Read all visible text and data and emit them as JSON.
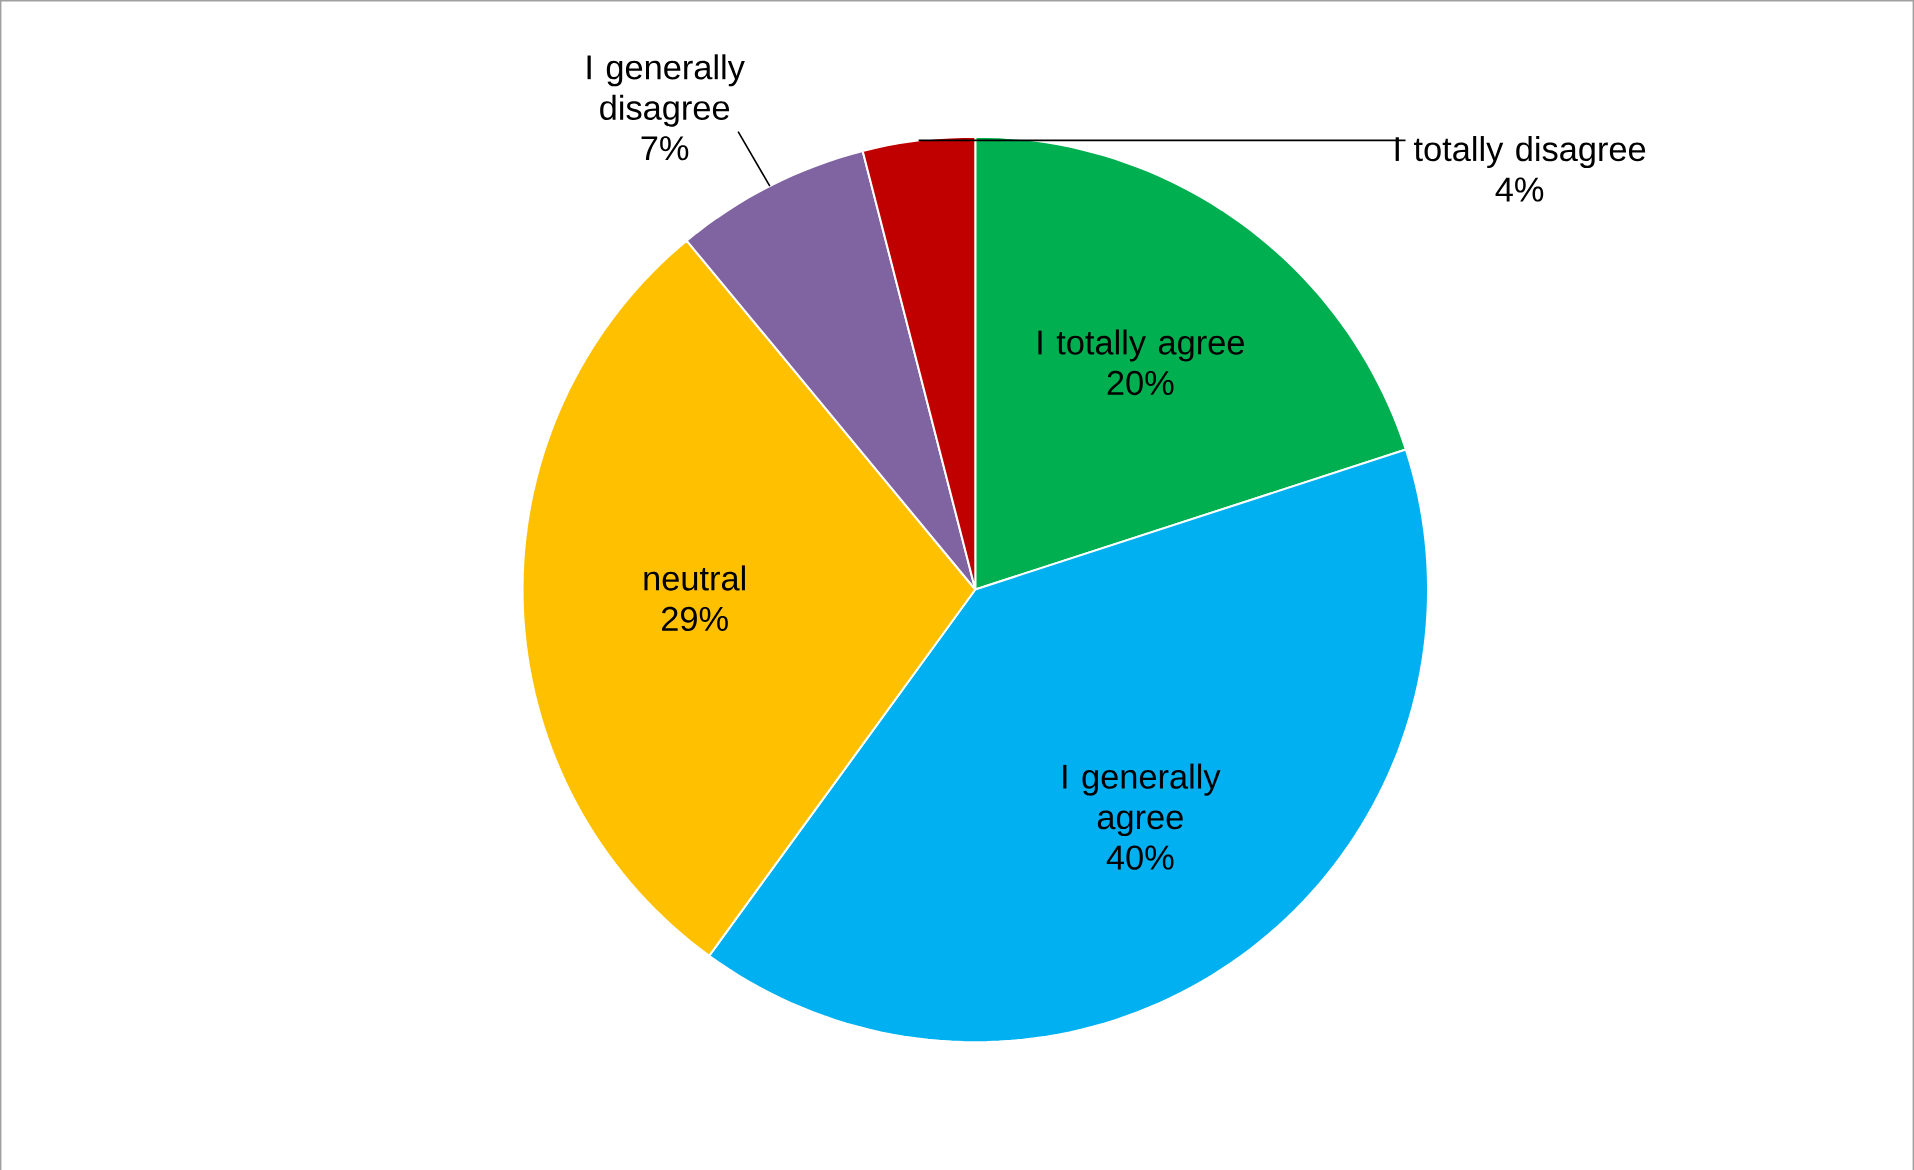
{
  "chart_data": {
    "type": "pie",
    "categories": [
      "I totally agree",
      "I generally agree",
      "neutral",
      "I generally disagree",
      "I totally disagree"
    ],
    "values": [
      20,
      40,
      29,
      7,
      4
    ],
    "value_labels": [
      "20%",
      "40%",
      "29%",
      "7%",
      "4%"
    ],
    "colors": [
      "#00b050",
      "#00b0f0",
      "#ffc000",
      "#8064a2",
      "#c00000"
    ]
  }
}
